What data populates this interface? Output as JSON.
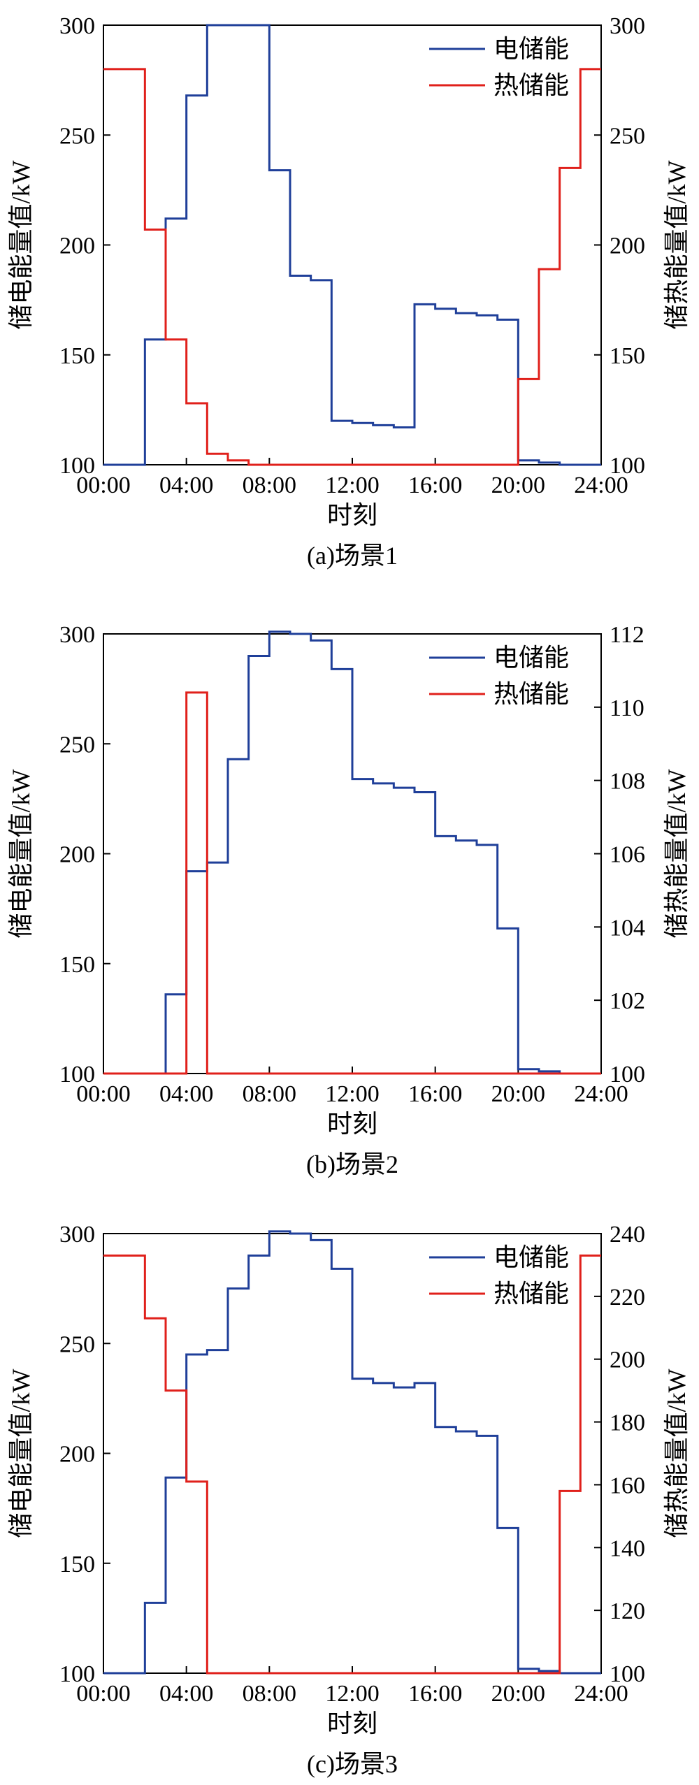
{
  "colors": {
    "electric": "#1f3f99",
    "thermal": "#e0201b",
    "axis": "#000000"
  },
  "chart_data": [
    {
      "type": "line",
      "caption": "(a)场景1",
      "xlabel": "时刻",
      "ylabel": "储电能量值/kW",
      "y2label": "储热能量值/kW",
      "xlim": [
        0,
        24
      ],
      "ylim": [
        100,
        300
      ],
      "y2lim": [
        100,
        300
      ],
      "xticks": [
        "00:00",
        "04:00",
        "08:00",
        "12:00",
        "16:00",
        "20:00",
        "24:00"
      ],
      "yticks": [
        100,
        150,
        200,
        250,
        300
      ],
      "y2ticks": [
        100,
        150,
        200,
        250,
        300
      ],
      "legend": {
        "placement": "top-right",
        "entries": [
          "电储能",
          "热储能"
        ]
      },
      "grid": false,
      "step": true,
      "series": [
        {
          "name": "电储能",
          "axis": "left",
          "x": [
            0,
            1,
            2,
            3,
            4,
            5,
            6,
            7,
            8,
            9,
            10,
            11,
            12,
            13,
            14,
            15,
            16,
            17,
            18,
            19,
            20,
            21,
            22,
            23,
            24
          ],
          "values": [
            100,
            100,
            157,
            212,
            268,
            300,
            300,
            300,
            234,
            186,
            184,
            120,
            119,
            118,
            117,
            173,
            171,
            169,
            168,
            166,
            102,
            101,
            100,
            100,
            100
          ]
        },
        {
          "name": "热储能",
          "axis": "right",
          "x": [
            0,
            1,
            2,
            3,
            4,
            5,
            6,
            7,
            8,
            9,
            10,
            11,
            12,
            13,
            14,
            15,
            16,
            17,
            18,
            19,
            20,
            21,
            22,
            23,
            24
          ],
          "values": [
            280,
            280,
            207,
            157,
            128,
            105,
            102,
            100,
            100,
            100,
            100,
            100,
            100,
            100,
            100,
            100,
            100,
            100,
            100,
            100,
            139,
            189,
            235,
            280,
            280
          ]
        }
      ]
    },
    {
      "type": "line",
      "caption": "(b)场景2",
      "xlabel": "时刻",
      "ylabel": "储电能量值/kW",
      "y2label": "储热能量值/kW",
      "xlim": [
        0,
        24
      ],
      "ylim": [
        100,
        300
      ],
      "y2lim": [
        100,
        112
      ],
      "xticks": [
        "00:00",
        "04:00",
        "08:00",
        "12:00",
        "16:00",
        "20:00",
        "24:00"
      ],
      "yticks": [
        100,
        150,
        200,
        250,
        300
      ],
      "y2ticks": [
        100,
        102,
        104,
        106,
        108,
        110,
        112
      ],
      "legend": {
        "placement": "top-right",
        "entries": [
          "电储能",
          "热储能"
        ]
      },
      "grid": false,
      "step": true,
      "series": [
        {
          "name": "电储能",
          "axis": "left",
          "x": [
            0,
            1,
            2,
            3,
            4,
            5,
            6,
            7,
            8,
            9,
            10,
            11,
            12,
            13,
            14,
            15,
            16,
            17,
            18,
            19,
            20,
            21,
            22,
            23,
            24
          ],
          "values": [
            100,
            100,
            100,
            136,
            192,
            196,
            243,
            290,
            301,
            300,
            297,
            284,
            234,
            232,
            230,
            228,
            208,
            206,
            204,
            166,
            102,
            101,
            100,
            100,
            100
          ]
        },
        {
          "name": "热储能",
          "axis": "right",
          "x": [
            0,
            1,
            2,
            3,
            4,
            5,
            6,
            7,
            8,
            9,
            10,
            11,
            12,
            13,
            14,
            15,
            16,
            17,
            18,
            19,
            20,
            21,
            22,
            23,
            24
          ],
          "values": [
            100,
            100,
            100,
            100,
            110.4,
            100,
            100,
            100,
            100,
            100,
            100,
            100,
            100,
            100,
            100,
            100,
            100,
            100,
            100,
            100,
            100,
            100,
            100,
            100,
            100
          ]
        }
      ]
    },
    {
      "type": "line",
      "caption": "(c)场景3",
      "xlabel": "时刻",
      "ylabel": "储电能量值/kW",
      "y2label": "储热能量值/kW",
      "xlim": [
        0,
        24
      ],
      "ylim": [
        100,
        300
      ],
      "y2lim": [
        100,
        240
      ],
      "xticks": [
        "00:00",
        "04:00",
        "08:00",
        "12:00",
        "16:00",
        "20:00",
        "24:00"
      ],
      "yticks": [
        100,
        150,
        200,
        250,
        300
      ],
      "y2ticks": [
        100,
        120,
        140,
        160,
        180,
        200,
        220,
        240
      ],
      "legend": {
        "placement": "top-right",
        "entries": [
          "电储能",
          "热储能"
        ]
      },
      "grid": false,
      "step": true,
      "series": [
        {
          "name": "电储能",
          "axis": "left",
          "x": [
            0,
            1,
            2,
            3,
            4,
            5,
            6,
            7,
            8,
            9,
            10,
            11,
            12,
            13,
            14,
            15,
            16,
            17,
            18,
            19,
            20,
            21,
            22,
            23,
            24
          ],
          "values": [
            100,
            100,
            132,
            189,
            245,
            247,
            275,
            290,
            301,
            300,
            297,
            284,
            234,
            232,
            230,
            232,
            212,
            210,
            208,
            166,
            102,
            101,
            100,
            100,
            100
          ]
        },
        {
          "name": "热储能",
          "axis": "right",
          "x": [
            0,
            1,
            2,
            3,
            4,
            5,
            6,
            7,
            8,
            9,
            10,
            11,
            12,
            13,
            14,
            15,
            16,
            17,
            18,
            19,
            20,
            21,
            22,
            23,
            24
          ],
          "values": [
            233,
            233,
            213,
            190,
            161,
            100,
            100,
            100,
            100,
            100,
            100,
            100,
            100,
            100,
            100,
            100,
            100,
            100,
            100,
            100,
            100,
            100,
            158,
            233,
            233
          ]
        }
      ]
    }
  ]
}
